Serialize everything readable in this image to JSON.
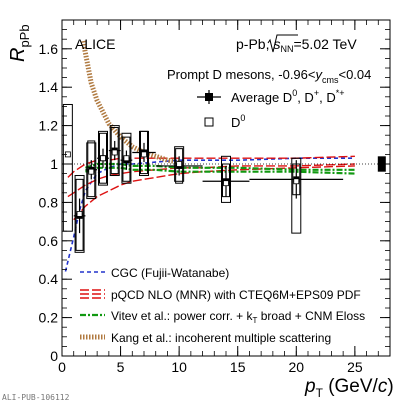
{
  "chart_data": {
    "type": "scatter",
    "experiment": "ALICE",
    "system": "p-Pb,",
    "energy_sqrt": "s",
    "energy_sub": "NN",
    "energy_value": "=5.02 TeV",
    "selection_prefix": "Prompt D mesons, -0.96<",
    "selection_var": "y",
    "selection_sub": "cms",
    "selection_suffix": "<0.04",
    "ylabel_main": "R",
    "ylabel_sub": "pPb",
    "xlabel_main": "p",
    "xlabel_sub": "T",
    "xlabel_unit_open": " (GeV/",
    "xlabel_unit_var": "c",
    "xlabel_unit_close": ")",
    "watermark": "ALI-PUB-106112",
    "xlim": [
      0,
      28
    ],
    "ylim": [
      0,
      1.75
    ],
    "xticks": [
      0,
      5,
      10,
      15,
      20,
      25
    ],
    "yticks": [
      0,
      0.2,
      0.4,
      0.6,
      0.8,
      1.0,
      1.2,
      1.4,
      1.6
    ],
    "ytick_labels": [
      "0",
      "0.2",
      "0.4",
      "0.6",
      "0.8",
      "1",
      "1.2",
      "1.4",
      "1.6"
    ],
    "xtick_labels": [
      "0",
      "5",
      "10",
      "15",
      "20",
      "25"
    ],
    "reference_line": 1.0,
    "global_uncertainty": {
      "x": 27.3,
      "low": 0.96,
      "high": 1.04
    },
    "series": [
      {
        "name": "Average D",
        "legend_sup": "0",
        "legend_rest": ", D",
        "legend_sup2": "+",
        "legend_rest2": ", D",
        "legend_sup3": "*+",
        "marker": "filled-square",
        "points": [
          {
            "x": 1.5,
            "y": 0.73,
            "xerr": 0.5,
            "yerr": 0.09,
            "syst_lo": 0.55,
            "syst_hi": 0.92
          },
          {
            "x": 2.5,
            "y": 0.97,
            "xerr": 0.5,
            "yerr": 0.05,
            "syst_lo": 0.83,
            "syst_hi": 1.12
          },
          {
            "x": 3.5,
            "y": 1.03,
            "xerr": 0.5,
            "yerr": 0.05,
            "syst_lo": 0.9,
            "syst_hi": 1.16
          },
          {
            "x": 4.5,
            "y": 1.07,
            "xerr": 0.5,
            "yerr": 0.05,
            "syst_lo": 0.95,
            "syst_hi": 1.19
          },
          {
            "x": 5.5,
            "y": 1.02,
            "xerr": 0.5,
            "yerr": 0.05,
            "syst_lo": 0.91,
            "syst_hi": 1.14
          },
          {
            "x": 7.0,
            "y": 1.06,
            "xerr": 1.0,
            "yerr": 0.05,
            "syst_lo": 0.95,
            "syst_hi": 1.17
          },
          {
            "x": 10.0,
            "y": 0.99,
            "xerr": 2.0,
            "yerr": 0.05,
            "syst_lo": 0.9,
            "syst_hi": 1.08
          },
          {
            "x": 14.0,
            "y": 0.91,
            "xerr": 2.0,
            "yerr": 0.08,
            "syst_lo": 0.83,
            "syst_hi": 1.0
          },
          {
            "x": 20.0,
            "y": 0.92,
            "xerr": 4.0,
            "yerr": 0.1,
            "syst_lo": 0.84,
            "syst_hi": 1.0
          }
        ]
      },
      {
        "name": "D",
        "legend_sup": "0",
        "marker": "open-square",
        "points": [
          {
            "x": 0.5,
            "y": 1.05,
            "xerr": 0.5,
            "yerr": 0.23,
            "syst_lo": 0.65,
            "syst_hi": 1.31
          },
          {
            "x": 1.5,
            "y": 0.74,
            "xerr": 0.5,
            "yerr": 0.08,
            "syst_lo": 0.54,
            "syst_hi": 0.94
          },
          {
            "x": 2.5,
            "y": 0.96,
            "xerr": 0.5,
            "yerr": 0.05,
            "syst_lo": 0.82,
            "syst_hi": 1.11
          },
          {
            "x": 3.5,
            "y": 1.03,
            "xerr": 0.5,
            "yerr": 0.05,
            "syst_lo": 0.89,
            "syst_hi": 1.17
          },
          {
            "x": 4.5,
            "y": 1.06,
            "xerr": 0.5,
            "yerr": 0.05,
            "syst_lo": 0.94,
            "syst_hi": 1.2
          },
          {
            "x": 5.5,
            "y": 1.03,
            "xerr": 0.5,
            "yerr": 0.05,
            "syst_lo": 0.9,
            "syst_hi": 1.16
          },
          {
            "x": 7.0,
            "y": 1.05,
            "xerr": 1.0,
            "yerr": 0.05,
            "syst_lo": 0.94,
            "syst_hi": 1.17
          },
          {
            "x": 10.0,
            "y": 1.0,
            "xerr": 2.0,
            "yerr": 0.05,
            "syst_lo": 0.91,
            "syst_hi": 1.09
          },
          {
            "x": 14.0,
            "y": 0.9,
            "xerr": 2.0,
            "yerr": 0.09,
            "syst_lo": 0.8,
            "syst_hi": 1.04
          },
          {
            "x": 20.0,
            "y": 0.91,
            "xerr": 4.0,
            "yerr": 0.12,
            "syst_lo": 0.64,
            "syst_hi": 1.03
          }
        ]
      }
    ],
    "models": [
      {
        "name": "CGC (Fujii-Watanabe)",
        "color": "#2233cc",
        "style": "dashed-thin",
        "lines": [
          {
            "x": [
              0.3,
              1,
              1.5,
              2,
              3,
              4,
              5,
              6,
              8,
              10,
              12,
              15,
              20,
              25
            ],
            "y": [
              0.44,
              0.62,
              0.76,
              0.86,
              0.95,
              0.98,
              1.0,
              1.0,
              1.01,
              1.02,
              1.02,
              1.02,
              1.03,
              1.03
            ]
          }
        ]
      },
      {
        "name": "pQCD NLO (MNR) with CTEQ6M+EPS09 PDF",
        "color": "#dd1111",
        "style": "long-dash",
        "lines": [
          {
            "x": [
              0.5,
              1,
              2,
              3,
              4,
              5,
              6,
              8,
              10,
              12,
              15,
              20,
              25
            ],
            "y": [
              0.83,
              0.85,
              0.89,
              0.92,
              0.94,
              0.95,
              0.96,
              0.97,
              0.98,
              0.98,
              0.99,
              0.99,
              1.0
            ]
          },
          {
            "x": [
              0.5,
              1,
              2,
              3,
              4,
              5,
              6,
              8,
              10,
              12,
              15,
              20,
              25
            ],
            "y": [
              0.93,
              0.96,
              1.0,
              1.02,
              1.02,
              1.03,
              1.03,
              1.03,
              1.03,
              1.03,
              1.03,
              1.03,
              1.04
            ]
          },
          {
            "x": [
              1,
              2,
              3,
              4,
              5,
              6,
              8,
              10,
              12,
              15,
              20,
              25
            ],
            "y": [
              0.71,
              0.78,
              0.83,
              0.86,
              0.89,
              0.91,
              0.93,
              0.95,
              0.96,
              0.97,
              0.98,
              0.99
            ]
          }
        ]
      },
      {
        "name": "Vitev et al.: power corr. + k",
        "name_sub": "T",
        "name_rest": " broad + CNM Eloss",
        "color": "#119911",
        "style": "dash-dot",
        "lines": [
          {
            "x": [
              2,
              3,
              4,
              5,
              6,
              8,
              10,
              12,
              15,
              20,
              25
            ],
            "y": [
              0.96,
              0.98,
              0.98,
              0.98,
              0.97,
              0.97,
              0.96,
              0.96,
              0.96,
              0.96,
              0.95
            ]
          },
          {
            "x": [
              2,
              3,
              4,
              5,
              6,
              8,
              10,
              12,
              15,
              20,
              25
            ],
            "y": [
              0.98,
              1.0,
              1.0,
              1.0,
              0.99,
              0.99,
              0.98,
              0.98,
              0.98,
              0.97,
              0.97
            ]
          }
        ]
      },
      {
        "name": "Kang et al.: incoherent multiple scattering",
        "color": "#b07a40",
        "style": "dotted-thick",
        "lines": [
          {
            "x": [
              1.8,
              2.5,
              3,
              4,
              5,
              6,
              7,
              8,
              9,
              10
            ],
            "y": [
              1.64,
              1.42,
              1.33,
              1.21,
              1.14,
              1.09,
              1.06,
              1.04,
              1.02,
              1.01
            ]
          }
        ]
      }
    ]
  }
}
